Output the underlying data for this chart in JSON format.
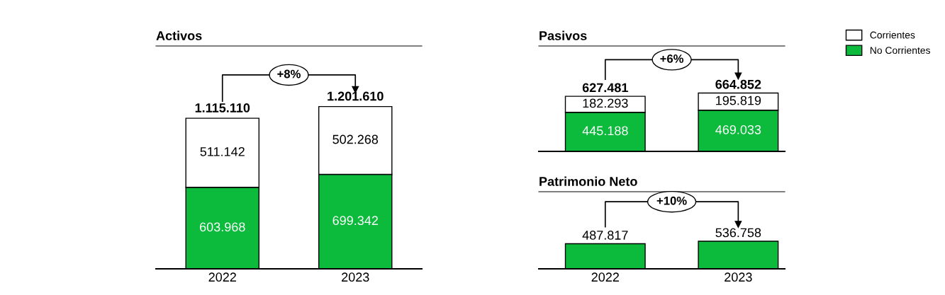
{
  "chart_data": [
    {
      "type": "bar",
      "title": "Activos",
      "categories": [
        "2022",
        "2023"
      ],
      "stacked": true,
      "ylim": [
        0,
        1650000
      ],
      "tick_labels": "x",
      "legend": "top right",
      "series": [
        {
          "name": "No Corrientes",
          "color": "#0cbb3c",
          "values": [
            603968,
            699342
          ],
          "value_labels": [
            "603.968",
            "699.342"
          ]
        },
        {
          "name": "Corrientes",
          "color": "#ffffff",
          "values": [
            511142,
            502268
          ],
          "value_labels": [
            "511.142",
            "502.268"
          ]
        }
      ],
      "totals": [
        "1.115.110",
        "1.201.610"
      ],
      "annotations": [
        "+8%"
      ]
    },
    {
      "type": "bar",
      "title": "Pasivos",
      "categories": [
        null,
        null
      ],
      "stacked": true,
      "ylim": [
        0,
        1200000
      ],
      "tick_labels": false,
      "series": [
        {
          "color": "#0cbb3c",
          "values": [
            445188,
            469033
          ],
          "value_labels": [
            "445.188",
            "469.033"
          ]
        },
        {
          "color": "#ffffff",
          "values": [
            182293,
            195819
          ],
          "value_labels": [
            "182.293",
            "195.819"
          ]
        }
      ],
      "totals": [
        "627.481",
        "664.852"
      ],
      "annotations": [
        "+6%"
      ]
    },
    {
      "type": "bar",
      "title": "Patrimonio Neto",
      "categories": [
        "2022",
        "2023"
      ],
      "ylim": [
        0,
        1500000
      ],
      "tick_labels": "x",
      "series": [
        {
          "color": "#0cbb3c",
          "values": [
            487817,
            536758
          ],
          "value_labels": [
            "487.817",
            "536.758"
          ]
        }
      ],
      "annotations": [
        "+10%"
      ]
    }
  ]
}
